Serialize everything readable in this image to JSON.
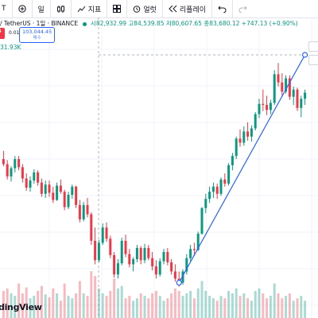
{
  "toolbar": {
    "symbol_fragment": "T",
    "interval_label": "일",
    "indicators_label": "지표",
    "alert_label": "얼럿",
    "replay_label": "리플레이"
  },
  "legend": {
    "symbol_text": "/ TetherUS · 1일 · BINANCE",
    "open": "시82,932.99",
    "high": "고84,539.85",
    "low": "저80,607.65",
    "close": "종83,680.12",
    "change": "+747.13 (+0.90%)",
    "up_color": "#089981",
    "down_color": "#f23645"
  },
  "trade": {
    "sell_price": "4",
    "spread": "0.01",
    "buy_price": "103,044.45",
    "buy_label": "매수"
  },
  "volume_label": "31.93K",
  "watermark": "dingView",
  "chart_data": {
    "type": "candlestick",
    "price_ylim": [
      82000,
      105500
    ],
    "candles": [
      [
        94600,
        95400,
        93900,
        94100
      ],
      [
        94100,
        94500,
        92600,
        92900
      ],
      [
        92900,
        93900,
        92400,
        93700
      ],
      [
        93700,
        94900,
        93300,
        94600
      ],
      [
        94600,
        94900,
        93500,
        93800
      ],
      [
        93800,
        94100,
        92300,
        92700
      ],
      [
        92700,
        93200,
        91500,
        91800
      ],
      [
        91800,
        92900,
        91400,
        92500
      ],
      [
        92500,
        93600,
        92200,
        93300
      ],
      [
        93300,
        93500,
        92000,
        92300
      ],
      [
        92300,
        92700,
        90900,
        91200
      ],
      [
        91200,
        92500,
        90800,
        92100
      ],
      [
        92100,
        92500,
        90900,
        91300
      ],
      [
        91300,
        91900,
        90300,
        90600
      ],
      [
        90600,
        92300,
        90500,
        92000
      ],
      [
        92000,
        92600,
        91200,
        91400
      ],
      [
        91400,
        91600,
        89600,
        89900
      ],
      [
        89900,
        91400,
        89700,
        91100
      ],
      [
        91100,
        92100,
        90700,
        91900
      ],
      [
        91900,
        92000,
        89800,
        90100
      ],
      [
        90100,
        90600,
        88400,
        88700
      ],
      [
        88700,
        90400,
        88500,
        90100
      ],
      [
        90100,
        90800,
        88900,
        89200
      ],
      [
        89200,
        89400,
        86200,
        86600
      ],
      [
        86600,
        87900,
        84300,
        84700
      ],
      [
        84700,
        86700,
        84500,
        86400
      ],
      [
        86400,
        88300,
        86200,
        87900
      ],
      [
        87900,
        88400,
        86500,
        86800
      ],
      [
        86800,
        87100,
        84900,
        85200
      ],
      [
        85200,
        85500,
        83000,
        83300
      ],
      [
        83300,
        84800,
        82900,
        84400
      ],
      [
        84400,
        86900,
        84200,
        86600
      ],
      [
        86600,
        87200,
        85000,
        85300
      ],
      [
        85300,
        85800,
        84000,
        84300
      ],
      [
        84300,
        85000,
        83600,
        84800
      ],
      [
        84800,
        86200,
        84500,
        85900
      ],
      [
        85900,
        86100,
        84300,
        84700
      ],
      [
        84700,
        86300,
        84400,
        85900
      ],
      [
        85900,
        86200,
        84700,
        84900
      ],
      [
        84900,
        85500,
        83700,
        84100
      ],
      [
        84100,
        84700,
        82900,
        83300
      ],
      [
        83300,
        84900,
        83100,
        84600
      ],
      [
        84600,
        85800,
        84300,
        85500
      ],
      [
        85500,
        85900,
        84200,
        84500
      ],
      [
        84500,
        84800,
        83300,
        83600
      ],
      [
        83600,
        84300,
        82600,
        82900
      ],
      [
        82900,
        83600,
        82100,
        82500
      ],
      [
        82500,
        83800,
        82300,
        83600
      ],
      [
        83600,
        85300,
        83300,
        84900
      ],
      [
        84900,
        86200,
        84600,
        85800
      ],
      [
        85800,
        86400,
        85100,
        85700
      ],
      [
        85700,
        87500,
        85600,
        87300
      ],
      [
        87300,
        89900,
        87200,
        89800
      ],
      [
        89800,
        91200,
        89300,
        90700
      ],
      [
        90700,
        91900,
        90300,
        91400
      ],
      [
        91400,
        92300,
        90800,
        91900
      ],
      [
        91900,
        92200,
        90700,
        91200
      ],
      [
        91200,
        92800,
        91000,
        92600
      ],
      [
        92600,
        93200,
        91900,
        92200
      ],
      [
        92200,
        94200,
        92000,
        94000
      ],
      [
        94000,
        95200,
        93500,
        94900
      ],
      [
        94900,
        96800,
        94600,
        96600
      ],
      [
        96600,
        97500,
        95800,
        96200
      ],
      [
        96200,
        97800,
        95900,
        97300
      ],
      [
        97300,
        98200,
        96400,
        96800
      ],
      [
        96800,
        97900,
        96300,
        97600
      ],
      [
        97600,
        99200,
        97400,
        99000
      ],
      [
        99000,
        100500,
        98600,
        100000
      ],
      [
        100000,
        101400,
        99300,
        99900
      ],
      [
        99900,
        100800,
        98900,
        99400
      ],
      [
        99400,
        100400,
        99000,
        100100
      ],
      [
        100100,
        103300,
        99900,
        102900
      ],
      [
        102900,
        104000,
        101700,
        102100
      ],
      [
        102100,
        103000,
        100800,
        101200
      ],
      [
        101200,
        102800,
        101000,
        102500
      ],
      [
        102500,
        102800,
        100400,
        100700
      ],
      [
        100700,
        101700,
        99900,
        101400
      ],
      [
        101400,
        101600,
        99300,
        99600
      ],
      [
        99600,
        100800,
        98700,
        100500
      ],
      [
        100500,
        101400,
        99900,
        101100
      ]
    ],
    "volumes": [
      0.55,
      0.6,
      0.5,
      0.45,
      0.7,
      0.5,
      0.62,
      0.4,
      0.45,
      0.55,
      0.65,
      0.48,
      0.42,
      0.6,
      0.5,
      0.35,
      0.7,
      0.45,
      0.4,
      0.5,
      0.75,
      0.5,
      0.45,
      0.95,
      0.85,
      0.6,
      0.5,
      0.45,
      0.55,
      0.8,
      0.6,
      0.65,
      0.4,
      0.45,
      0.35,
      0.4,
      0.5,
      0.45,
      0.4,
      0.5,
      0.55,
      0.45,
      0.35,
      0.4,
      0.5,
      0.6,
      0.55,
      0.45,
      0.5,
      0.55,
      0.4,
      0.6,
      0.75,
      0.55,
      0.45,
      0.4,
      0.35,
      0.45,
      0.4,
      0.55,
      0.5,
      0.6,
      0.45,
      0.5,
      0.4,
      0.35,
      0.55,
      0.6,
      0.5,
      0.4,
      0.45,
      0.7,
      0.5,
      0.4,
      0.45,
      0.5,
      0.35,
      0.4,
      0.45,
      0.35
    ],
    "trend_line": {
      "from": [
        46,
        82500
      ],
      "to": [
        79,
        104800
      ]
    },
    "dashed_level": 104800
  }
}
